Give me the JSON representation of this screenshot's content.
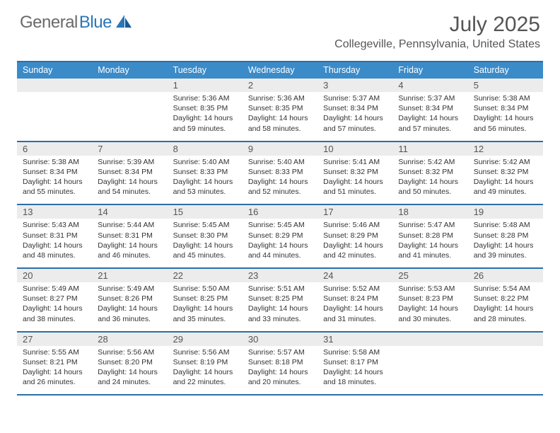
{
  "logo": {
    "textGray": "General",
    "textBlue": "Blue"
  },
  "header": {
    "monthTitle": "July 2025",
    "location": "Collegeville, Pennsylvania, United States"
  },
  "colors": {
    "headerBar": "#3b8bc9",
    "borderDark": "#2b6fa8",
    "dayNumBg": "#ececec",
    "logoGray": "#6a6a6a",
    "logoBlue": "#2977b8"
  },
  "daysOfWeek": [
    "Sunday",
    "Monday",
    "Tuesday",
    "Wednesday",
    "Thursday",
    "Friday",
    "Saturday"
  ],
  "weeks": [
    [
      {
        "num": "",
        "sunrise": "",
        "sunset": "",
        "daylight": ""
      },
      {
        "num": "",
        "sunrise": "",
        "sunset": "",
        "daylight": ""
      },
      {
        "num": "1",
        "sunrise": "Sunrise: 5:36 AM",
        "sunset": "Sunset: 8:35 PM",
        "daylight": "Daylight: 14 hours and 59 minutes."
      },
      {
        "num": "2",
        "sunrise": "Sunrise: 5:36 AM",
        "sunset": "Sunset: 8:35 PM",
        "daylight": "Daylight: 14 hours and 58 minutes."
      },
      {
        "num": "3",
        "sunrise": "Sunrise: 5:37 AM",
        "sunset": "Sunset: 8:34 PM",
        "daylight": "Daylight: 14 hours and 57 minutes."
      },
      {
        "num": "4",
        "sunrise": "Sunrise: 5:37 AM",
        "sunset": "Sunset: 8:34 PM",
        "daylight": "Daylight: 14 hours and 57 minutes."
      },
      {
        "num": "5",
        "sunrise": "Sunrise: 5:38 AM",
        "sunset": "Sunset: 8:34 PM",
        "daylight": "Daylight: 14 hours and 56 minutes."
      }
    ],
    [
      {
        "num": "6",
        "sunrise": "Sunrise: 5:38 AM",
        "sunset": "Sunset: 8:34 PM",
        "daylight": "Daylight: 14 hours and 55 minutes."
      },
      {
        "num": "7",
        "sunrise": "Sunrise: 5:39 AM",
        "sunset": "Sunset: 8:34 PM",
        "daylight": "Daylight: 14 hours and 54 minutes."
      },
      {
        "num": "8",
        "sunrise": "Sunrise: 5:40 AM",
        "sunset": "Sunset: 8:33 PM",
        "daylight": "Daylight: 14 hours and 53 minutes."
      },
      {
        "num": "9",
        "sunrise": "Sunrise: 5:40 AM",
        "sunset": "Sunset: 8:33 PM",
        "daylight": "Daylight: 14 hours and 52 minutes."
      },
      {
        "num": "10",
        "sunrise": "Sunrise: 5:41 AM",
        "sunset": "Sunset: 8:32 PM",
        "daylight": "Daylight: 14 hours and 51 minutes."
      },
      {
        "num": "11",
        "sunrise": "Sunrise: 5:42 AM",
        "sunset": "Sunset: 8:32 PM",
        "daylight": "Daylight: 14 hours and 50 minutes."
      },
      {
        "num": "12",
        "sunrise": "Sunrise: 5:42 AM",
        "sunset": "Sunset: 8:32 PM",
        "daylight": "Daylight: 14 hours and 49 minutes."
      }
    ],
    [
      {
        "num": "13",
        "sunrise": "Sunrise: 5:43 AM",
        "sunset": "Sunset: 8:31 PM",
        "daylight": "Daylight: 14 hours and 48 minutes."
      },
      {
        "num": "14",
        "sunrise": "Sunrise: 5:44 AM",
        "sunset": "Sunset: 8:31 PM",
        "daylight": "Daylight: 14 hours and 46 minutes."
      },
      {
        "num": "15",
        "sunrise": "Sunrise: 5:45 AM",
        "sunset": "Sunset: 8:30 PM",
        "daylight": "Daylight: 14 hours and 45 minutes."
      },
      {
        "num": "16",
        "sunrise": "Sunrise: 5:45 AM",
        "sunset": "Sunset: 8:29 PM",
        "daylight": "Daylight: 14 hours and 44 minutes."
      },
      {
        "num": "17",
        "sunrise": "Sunrise: 5:46 AM",
        "sunset": "Sunset: 8:29 PM",
        "daylight": "Daylight: 14 hours and 42 minutes."
      },
      {
        "num": "18",
        "sunrise": "Sunrise: 5:47 AM",
        "sunset": "Sunset: 8:28 PM",
        "daylight": "Daylight: 14 hours and 41 minutes."
      },
      {
        "num": "19",
        "sunrise": "Sunrise: 5:48 AM",
        "sunset": "Sunset: 8:28 PM",
        "daylight": "Daylight: 14 hours and 39 minutes."
      }
    ],
    [
      {
        "num": "20",
        "sunrise": "Sunrise: 5:49 AM",
        "sunset": "Sunset: 8:27 PM",
        "daylight": "Daylight: 14 hours and 38 minutes."
      },
      {
        "num": "21",
        "sunrise": "Sunrise: 5:49 AM",
        "sunset": "Sunset: 8:26 PM",
        "daylight": "Daylight: 14 hours and 36 minutes."
      },
      {
        "num": "22",
        "sunrise": "Sunrise: 5:50 AM",
        "sunset": "Sunset: 8:25 PM",
        "daylight": "Daylight: 14 hours and 35 minutes."
      },
      {
        "num": "23",
        "sunrise": "Sunrise: 5:51 AM",
        "sunset": "Sunset: 8:25 PM",
        "daylight": "Daylight: 14 hours and 33 minutes."
      },
      {
        "num": "24",
        "sunrise": "Sunrise: 5:52 AM",
        "sunset": "Sunset: 8:24 PM",
        "daylight": "Daylight: 14 hours and 31 minutes."
      },
      {
        "num": "25",
        "sunrise": "Sunrise: 5:53 AM",
        "sunset": "Sunset: 8:23 PM",
        "daylight": "Daylight: 14 hours and 30 minutes."
      },
      {
        "num": "26",
        "sunrise": "Sunrise: 5:54 AM",
        "sunset": "Sunset: 8:22 PM",
        "daylight": "Daylight: 14 hours and 28 minutes."
      }
    ],
    [
      {
        "num": "27",
        "sunrise": "Sunrise: 5:55 AM",
        "sunset": "Sunset: 8:21 PM",
        "daylight": "Daylight: 14 hours and 26 minutes."
      },
      {
        "num": "28",
        "sunrise": "Sunrise: 5:56 AM",
        "sunset": "Sunset: 8:20 PM",
        "daylight": "Daylight: 14 hours and 24 minutes."
      },
      {
        "num": "29",
        "sunrise": "Sunrise: 5:56 AM",
        "sunset": "Sunset: 8:19 PM",
        "daylight": "Daylight: 14 hours and 22 minutes."
      },
      {
        "num": "30",
        "sunrise": "Sunrise: 5:57 AM",
        "sunset": "Sunset: 8:18 PM",
        "daylight": "Daylight: 14 hours and 20 minutes."
      },
      {
        "num": "31",
        "sunrise": "Sunrise: 5:58 AM",
        "sunset": "Sunset: 8:17 PM",
        "daylight": "Daylight: 14 hours and 18 minutes."
      },
      {
        "num": "",
        "sunrise": "",
        "sunset": "",
        "daylight": ""
      },
      {
        "num": "",
        "sunrise": "",
        "sunset": "",
        "daylight": ""
      }
    ]
  ]
}
